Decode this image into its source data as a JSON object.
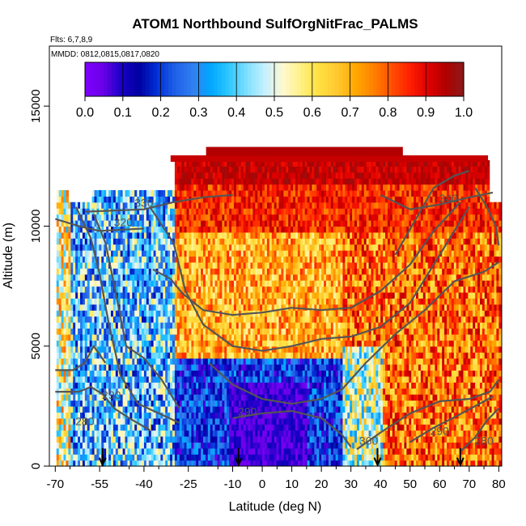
{
  "chart_data": {
    "type": "heatmap",
    "title": "ATOM1 Northbound SulfOrgNitFrac_PALMS",
    "note_flights": "Flts: 6,7,8,9",
    "note_dates": "MMDD: 0812,0815,0817,0820",
    "xlabel": "Latitude (deg N)",
    "ylabel": "Altitude (m)",
    "xlim": [
      -72,
      81
    ],
    "ylim": [
      0,
      17500
    ],
    "xticks": [
      -70,
      -55,
      -40,
      -25,
      -10,
      0,
      10,
      20,
      30,
      40,
      50,
      60,
      70,
      80
    ],
    "yticks": [
      0,
      5000,
      10000,
      15000
    ],
    "colorbar": {
      "range": [
        0.0,
        1.0
      ],
      "ticks": [
        "0.0",
        "0.1",
        "0.2",
        "0.3",
        "0.4",
        "0.5",
        "0.6",
        "0.7",
        "0.8",
        "0.9",
        "1.0"
      ],
      "colors": [
        "#7f00ff",
        "#6a00e8",
        "#1a00c8",
        "#0000a0",
        "#0030d8",
        "#2060e8",
        "#3080f0",
        "#00a8ff",
        "#30c8ff",
        "#80e0ff",
        "#c8f0ff",
        "#fff8d0",
        "#fff080",
        "#ffe040",
        "#ffc830",
        "#ffa800",
        "#ff8000",
        "#ff5000",
        "#ff2000",
        "#e00000",
        "#b00000",
        "#8b1a1a"
      ]
    },
    "contour_labels": [
      {
        "text": "330",
        "x": -40,
        "y": 10800
      },
      {
        "text": "320",
        "x": -47,
        "y": 10000
      },
      {
        "text": "340",
        "x": 63,
        "y": 11000
      },
      {
        "text": "290",
        "x": -51,
        "y": 2800
      },
      {
        "text": "280",
        "x": -60,
        "y": 1700
      },
      {
        "text": "290",
        "x": -5,
        "y": 2100
      },
      {
        "text": "300",
        "x": 36,
        "y": 900
      },
      {
        "text": "290",
        "x": 60,
        "y": 1300
      },
      {
        "text": "280",
        "x": 75,
        "y": 900
      }
    ],
    "arrows_x": [
      -54,
      -8,
      39,
      67
    ]
  }
}
